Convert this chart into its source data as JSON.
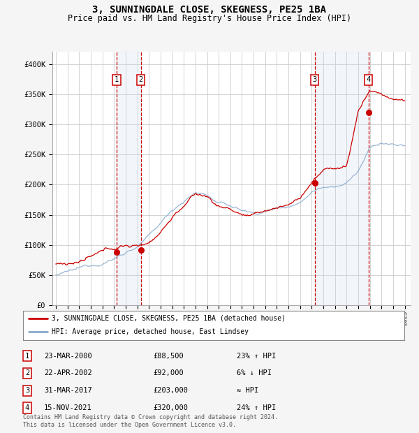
{
  "title": "3, SUNNINGDALE CLOSE, SKEGNESS, PE25 1BA",
  "subtitle": "Price paid vs. HM Land Registry's House Price Index (HPI)",
  "ylim": [
    0,
    420000
  ],
  "yticks": [
    0,
    50000,
    100000,
    150000,
    200000,
    250000,
    300000,
    350000,
    400000
  ],
  "ytick_labels": [
    "£0",
    "£50K",
    "£100K",
    "£150K",
    "£200K",
    "£250K",
    "£300K",
    "£350K",
    "£400K"
  ],
  "sale_dates_num": [
    2000.22,
    2002.31,
    2017.25,
    2021.88
  ],
  "sale_prices": [
    88500,
    92000,
    203000,
    320000
  ],
  "sale_labels": [
    "1",
    "2",
    "3",
    "4"
  ],
  "vline_color": "#cc0000",
  "shade_color": "#ddeeff",
  "legend_red_label": "3, SUNNINGDALE CLOSE, SKEGNESS, PE25 1BA (detached house)",
  "legend_blue_label": "HPI: Average price, detached house, East Lindsey",
  "table_rows": [
    [
      "1",
      "23-MAR-2000",
      "£88,500",
      "23% ↑ HPI"
    ],
    [
      "2",
      "22-APR-2002",
      "£92,000",
      "6% ↓ HPI"
    ],
    [
      "3",
      "31-MAR-2017",
      "£203,000",
      "≈ HPI"
    ],
    [
      "4",
      "15-NOV-2021",
      "£320,000",
      "24% ↑ HPI"
    ]
  ],
  "footnote": "Contains HM Land Registry data © Crown copyright and database right 2024.\nThis data is licensed under the Open Government Licence v3.0.",
  "background_color": "#f5f5f5",
  "plot_background": "#ffffff",
  "grid_color": "#cccccc",
  "red_line_color": "#cc0000",
  "blue_line_color": "#88aacc"
}
